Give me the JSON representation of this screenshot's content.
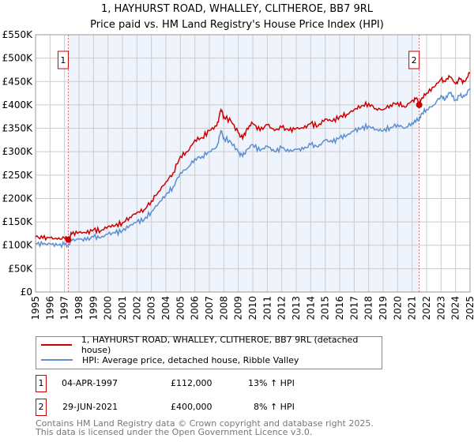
{
  "chart_data": {
    "type": "line",
    "title": "1, HAYHURST ROAD, WHALLEY, CLITHEROE, BB7 9RL",
    "subtitle": "Price paid vs. HM Land Registry's House Price Index (HPI)",
    "xlabel": "",
    "ylabel": "",
    "xlim": [
      1995,
      2025
    ],
    "ylim": [
      0,
      550000
    ],
    "y_ticks": [
      {
        "v": 0,
        "label": "£0"
      },
      {
        "v": 50000,
        "label": "£50K"
      },
      {
        "v": 100000,
        "label": "£100K"
      },
      {
        "v": 150000,
        "label": "£150K"
      },
      {
        "v": 200000,
        "label": "£200K"
      },
      {
        "v": 250000,
        "label": "£250K"
      },
      {
        "v": 300000,
        "label": "£300K"
      },
      {
        "v": 350000,
        "label": "£350K"
      },
      {
        "v": 400000,
        "label": "£400K"
      },
      {
        "v": 450000,
        "label": "£450K"
      },
      {
        "v": 500000,
        "label": "£500K"
      },
      {
        "v": 550000,
        "label": "£550K"
      }
    ],
    "x_ticks": [
      "1995",
      "1996",
      "1997",
      "1998",
      "1999",
      "2000",
      "2001",
      "2002",
      "2003",
      "2004",
      "2005",
      "2006",
      "2007",
      "2008",
      "2009",
      "2010",
      "2011",
      "2012",
      "2013",
      "2014",
      "2015",
      "2016",
      "2017",
      "2018",
      "2019",
      "2020",
      "2021",
      "2022",
      "2023",
      "2024",
      "2025"
    ],
    "grid": true,
    "colors": {
      "property": "#cc0000",
      "hpi": "#5b8fd0",
      "shade": "#eef3fc"
    },
    "series": [
      {
        "name": "1, HAYHURST ROAD, WHALLEY, CLITHEROE, BB7 9RL (detached house)",
        "x": [
          1995,
          1995.5,
          1996,
          1996.5,
          1997,
          1997.26,
          1997.5,
          1998,
          1998.5,
          1999,
          1999.5,
          2000,
          2000.5,
          2001,
          2001.5,
          2002,
          2002.5,
          2003,
          2003.5,
          2004,
          2004.5,
          2005,
          2005.5,
          2006,
          2006.5,
          2007,
          2007.5,
          2007.8,
          2008,
          2008.5,
          2009,
          2009.3,
          2009.6,
          2010,
          2010.5,
          2011,
          2011.5,
          2012,
          2012.5,
          2013,
          2013.5,
          2014,
          2014.5,
          2015,
          2015.5,
          2016,
          2016.5,
          2017,
          2017.5,
          2018,
          2018.5,
          2019,
          2019.5,
          2020,
          2020.5,
          2021,
          2021.3,
          2021.49,
          2021.6,
          2022,
          2022.5,
          2023,
          2023.3,
          2023.6,
          2024,
          2024.3,
          2024.6,
          2025
        ],
        "values": [
          118000,
          115000,
          116000,
          113000,
          115000,
          112000,
          124000,
          128000,
          126000,
          133000,
          131000,
          140000,
          142000,
          148000,
          160000,
          170000,
          176000,
          195000,
          215000,
          235000,
          255000,
          290000,
          300000,
          325000,
          330000,
          345000,
          355000,
          390000,
          375000,
          365000,
          340000,
          328000,
          350000,
          360000,
          345000,
          358000,
          345000,
          352000,
          345000,
          350000,
          350000,
          360000,
          355000,
          370000,
          365000,
          375000,
          380000,
          390000,
          398000,
          403000,
          392000,
          390000,
          400000,
          405000,
          395000,
          410000,
          415000,
          400000,
          410000,
          425000,
          438000,
          455000,
          450000,
          460000,
          445000,
          455000,
          450000,
          468000
        ]
      },
      {
        "name": "HPI: Average price, detached house, Ribble Valley",
        "x": [
          1995,
          1995.5,
          1996,
          1996.5,
          1997,
          1997.26,
          1997.5,
          1998,
          1998.5,
          1999,
          1999.5,
          2000,
          2000.5,
          2001,
          2001.5,
          2002,
          2002.5,
          2003,
          2003.5,
          2004,
          2004.5,
          2005,
          2005.5,
          2006,
          2006.5,
          2007,
          2007.5,
          2007.8,
          2008,
          2008.5,
          2009,
          2009.3,
          2009.6,
          2010,
          2010.5,
          2011,
          2011.5,
          2012,
          2012.5,
          2013,
          2013.5,
          2014,
          2014.5,
          2015,
          2015.5,
          2016,
          2016.5,
          2017,
          2017.5,
          2018,
          2018.5,
          2019,
          2019.5,
          2020,
          2020.5,
          2021,
          2021.3,
          2021.49,
          2021.6,
          2022,
          2022.5,
          2023,
          2023.3,
          2023.6,
          2024,
          2024.3,
          2024.6,
          2025
        ],
        "values": [
          104000,
          102000,
          103000,
          100000,
          101000,
          100000,
          110000,
          113000,
          111000,
          118000,
          116000,
          124000,
          126000,
          131000,
          142000,
          150000,
          155000,
          172000,
          190000,
          208000,
          225000,
          255000,
          265000,
          285000,
          290000,
          300000,
          310000,
          345000,
          330000,
          320000,
          300000,
          290000,
          305000,
          315000,
          302000,
          312000,
          300000,
          308000,
          300000,
          305000,
          305000,
          315000,
          310000,
          325000,
          320000,
          330000,
          335000,
          345000,
          350000,
          355000,
          347000,
          345000,
          352000,
          358000,
          350000,
          362000,
          368000,
          370000,
          378000,
          390000,
          400000,
          420000,
          412000,
          425000,
          410000,
          420000,
          418000,
          435000
        ]
      }
    ],
    "annotations": [
      {
        "id": "1",
        "x": 1997.26,
        "y": 112000
      },
      {
        "id": "2",
        "x": 2021.49,
        "y": 400000
      }
    ],
    "shaded_range": [
      1997.26,
      2021.49
    ]
  },
  "legend": {
    "property": "1, HAYHURST ROAD, WHALLEY, CLITHEROE, BB7 9RL (detached house)",
    "hpi": "HPI: Average price, detached house, Ribble Valley"
  },
  "transactions": [
    {
      "id": "1",
      "date": "04-APR-1997",
      "price": "£112,000",
      "hpi": "13% ↑ HPI"
    },
    {
      "id": "2",
      "date": "29-JUN-2021",
      "price": "£400,000",
      "hpi": "8% ↑ HPI"
    }
  ],
  "footer": {
    "line1": "Contains HM Land Registry data © Crown copyright and database right 2025.",
    "line2": "This data is licensed under the Open Government Licence v3.0."
  }
}
